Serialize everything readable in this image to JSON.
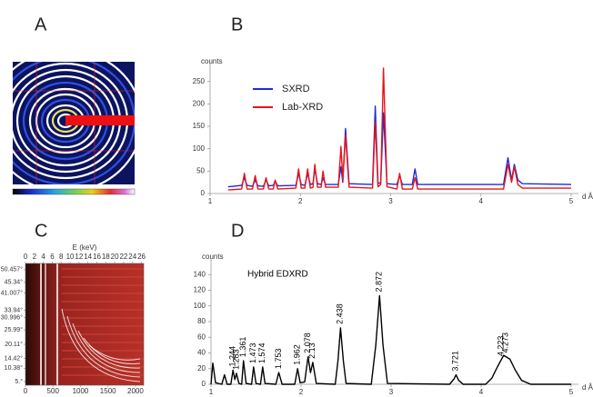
{
  "panel_labels": [
    "A",
    "B",
    "C",
    "D"
  ],
  "chart_data": [
    {
      "type": "line",
      "ylabel": "counts",
      "xlabel": "d Å",
      "legend": "upper left",
      "x": [
        1.2,
        1.35,
        1.38,
        1.41,
        1.47,
        1.5,
        1.53,
        1.59,
        1.62,
        1.65,
        1.7,
        1.72,
        1.75,
        1.95,
        1.98,
        2.01,
        2.05,
        2.08,
        2.11,
        2.14,
        2.16,
        2.19,
        2.23,
        2.25,
        2.28,
        2.42,
        2.45,
        2.47,
        2.5,
        2.54,
        2.8,
        2.83,
        2.86,
        2.89,
        2.92,
        2.96,
        3.07,
        3.1,
        3.13,
        3.24,
        3.27,
        3.3,
        4.25,
        4.3,
        4.34,
        4.37,
        4.41,
        4.46,
        5.0
      ],
      "series": [
        {
          "name": "SXRD",
          "color": "#1f2bd6",
          "values": [
            15,
            18,
            35,
            18,
            16,
            30,
            17,
            16,
            30,
            17,
            18,
            28,
            17,
            18,
            45,
            20,
            18,
            45,
            20,
            22,
            55,
            22,
            20,
            35,
            20,
            20,
            60,
            25,
            145,
            22,
            20,
            195,
            22,
            25,
            180,
            22,
            20,
            40,
            20,
            20,
            55,
            20,
            20,
            80,
            30,
            65,
            30,
            22,
            20
          ]
        },
        {
          "name": "Lab-XRD",
          "color": "#e8141a",
          "values": [
            8,
            10,
            45,
            10,
            10,
            40,
            10,
            10,
            35,
            10,
            10,
            30,
            10,
            12,
            55,
            12,
            12,
            55,
            12,
            14,
            65,
            14,
            14,
            50,
            14,
            14,
            105,
            30,
            130,
            14,
            12,
            160,
            15,
            20,
            280,
            15,
            10,
            45,
            10,
            10,
            35,
            10,
            10,
            65,
            25,
            60,
            20,
            12,
            12
          ]
        }
      ],
      "xlim": [
        1,
        5
      ],
      "xticks": [
        1,
        2,
        3,
        4,
        5
      ],
      "ylim": [
        0,
        290
      ],
      "yticks": [
        0,
        50,
        100,
        150,
        200,
        250
      ]
    },
    {
      "type": "heatmap",
      "x2label": "E (keV)",
      "xlim": [
        0,
        2150
      ],
      "xticks": [
        0,
        500,
        1000,
        1500,
        2000
      ],
      "x2lim": [
        0,
        26.5
      ],
      "x2ticks": [
        0,
        2,
        4,
        6,
        8,
        10,
        12,
        14,
        16,
        18,
        20,
        22,
        24,
        26
      ],
      "ylim": [
        3.5,
        53
      ],
      "yticks": [
        {
          "value": 50.457,
          "label": "50.457°"
        },
        {
          "value": 45.34,
          "label": "45.34°"
        },
        {
          "value": 41.007,
          "label": "41.007°"
        },
        {
          "value": 33.94,
          "label": "33.94°"
        },
        {
          "value": 30.996,
          "label": "30.996°"
        },
        {
          "value": 25.99,
          "label": "25.99°"
        },
        {
          "value": 20.11,
          "label": "20.11°"
        },
        {
          "value": 14.42,
          "label": "14.42°"
        },
        {
          "value": 10.38,
          "label": "10.38°"
        },
        {
          "value": 5,
          "label": "5.°"
        }
      ]
    },
    {
      "type": "line",
      "title": "Hybrid EDXRD",
      "ylabel": "counts",
      "xlabel": "d Å",
      "x": [
        1.0,
        1.02,
        1.05,
        1.12,
        1.15,
        1.18,
        1.22,
        1.244,
        1.265,
        1.283,
        1.31,
        1.34,
        1.361,
        1.39,
        1.45,
        1.473,
        1.5,
        1.55,
        1.574,
        1.6,
        1.72,
        1.753,
        1.79,
        1.93,
        1.962,
        1.99,
        2.04,
        2.078,
        2.105,
        2.13,
        2.17,
        2.38,
        2.41,
        2.438,
        2.47,
        2.5,
        2.78,
        2.83,
        2.872,
        2.91,
        2.96,
        3.65,
        3.7,
        3.721,
        3.75,
        3.8,
        4.05,
        4.12,
        4.18,
        4.25,
        4.32,
        4.38,
        4.45,
        4.55,
        5.0
      ],
      "series": [
        {
          "color": "#000000",
          "values": [
            0,
            27,
            2,
            0,
            12,
            0,
            0,
            18,
            6,
            14,
            1,
            0,
            30,
            1,
            0,
            22,
            1,
            0,
            22,
            1,
            0,
            15,
            0,
            0,
            20,
            2,
            3,
            35,
            15,
            28,
            1,
            0,
            30,
            72,
            30,
            1,
            0,
            50,
            113,
            50,
            1,
            0,
            7,
            12,
            5,
            0,
            0,
            8,
            22,
            37,
            32,
            18,
            5,
            0,
            0
          ]
        }
      ],
      "peak_labels": [
        1.244,
        1.283,
        1.361,
        1.473,
        1.574,
        1.753,
        1.962,
        2.078,
        2.13,
        2.438,
        2.872,
        3.721,
        4.223,
        4.273
      ],
      "xlim": [
        1,
        5
      ],
      "xticks": [
        1,
        2,
        3,
        4,
        5
      ],
      "ylim": [
        0,
        160
      ],
      "yticks": [
        0,
        20,
        40,
        60,
        80,
        100,
        120,
        140
      ]
    }
  ]
}
